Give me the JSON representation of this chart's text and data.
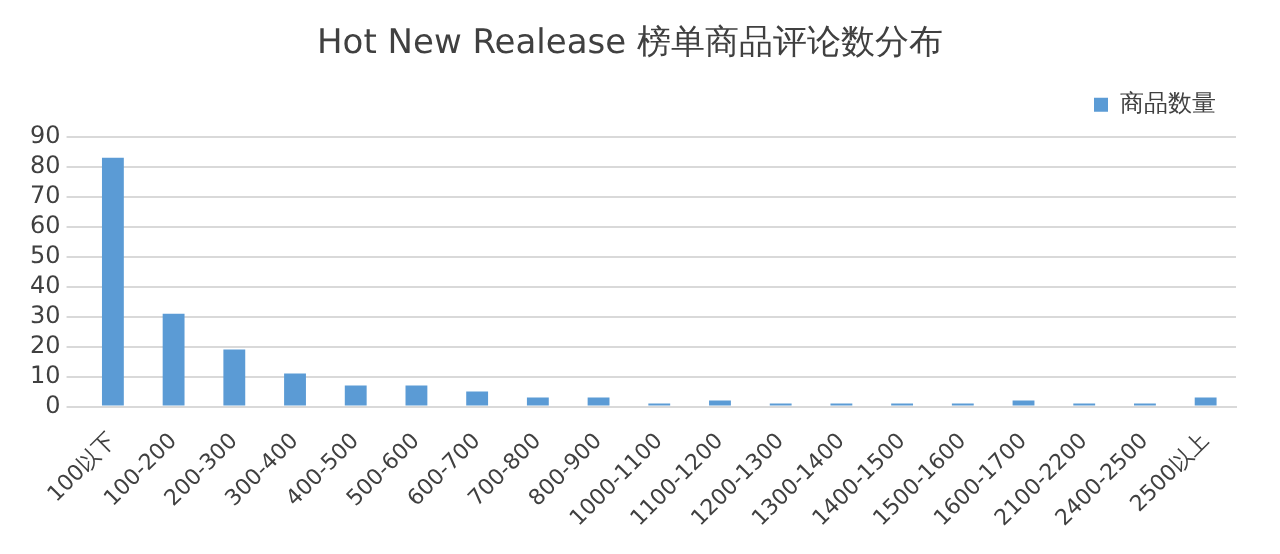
{
  "chart_data": {
    "type": "bar",
    "title": "Hot New Realease 榜单商品评论数分布",
    "categories": [
      "100以下",
      "100-200",
      "200-300",
      "300-400",
      "400-500",
      "500-600",
      "600-700",
      "700-800",
      "800-900",
      "1000-1100",
      "1100-1200",
      "1200-1300",
      "1300-1400",
      "1400-1500",
      "1500-1600",
      "1600-1700",
      "2100-2200",
      "2400-2500",
      "2500以上"
    ],
    "series": [
      {
        "name": "商品数量",
        "color": "#5b9bd5",
        "values": [
          83,
          31,
          19,
          11,
          7,
          7,
          5,
          3,
          3,
          1,
          2,
          1,
          1,
          1,
          1,
          2,
          1,
          1,
          3
        ]
      }
    ],
    "ylim": [
      0,
      90
    ],
    "yticks": [
      0,
      10,
      20,
      30,
      40,
      50,
      60,
      70,
      80,
      90
    ],
    "grid": "y",
    "legend": "top right"
  }
}
